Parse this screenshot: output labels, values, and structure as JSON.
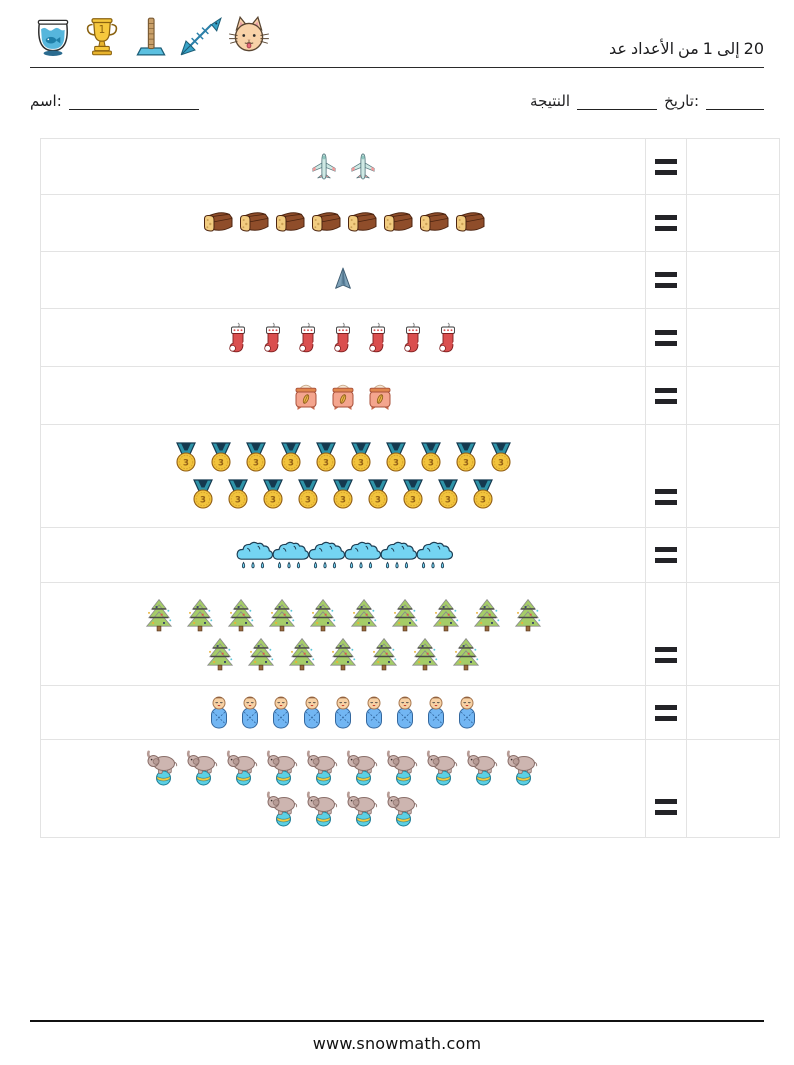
{
  "header": {
    "title": "عد الأعداد من 1 إلى 20",
    "icons": [
      "fishbowl",
      "trophy",
      "scratching-post",
      "fishbone",
      "cat"
    ],
    "trophy_number": "1"
  },
  "fields": {
    "name_label": "اسم:",
    "score_label": "النتيجة",
    "date_label": "تاريخ:"
  },
  "worksheet": {
    "equals_symbol": "=",
    "medal_number": "3",
    "rows": [
      {
        "icon": "airplane",
        "lines": [
          2
        ],
        "count": 2
      },
      {
        "icon": "bread",
        "lines": [
          8
        ],
        "count": 8
      },
      {
        "icon": "stealth-jet",
        "lines": [
          1
        ],
        "count": 1
      },
      {
        "icon": "stocking",
        "lines": [
          7
        ],
        "count": 7
      },
      {
        "icon": "sack",
        "lines": [
          3
        ],
        "count": 3
      },
      {
        "icon": "medal",
        "lines": [
          10,
          9
        ],
        "count": 19
      },
      {
        "icon": "cloud",
        "lines": [
          6
        ],
        "count": 6
      },
      {
        "icon": "tree",
        "lines": [
          10,
          7
        ],
        "count": 17
      },
      {
        "icon": "baby",
        "lines": [
          9
        ],
        "count": 9
      },
      {
        "icon": "elephant",
        "lines": [
          10,
          4
        ],
        "count": 14
      }
    ]
  },
  "footer": {
    "url": "www.snowmath.com"
  },
  "colors": {
    "equals": "#232327",
    "table_border": "#e3e3e3",
    "text": "#1d1d1f",
    "rule": "#2a2a2a"
  }
}
